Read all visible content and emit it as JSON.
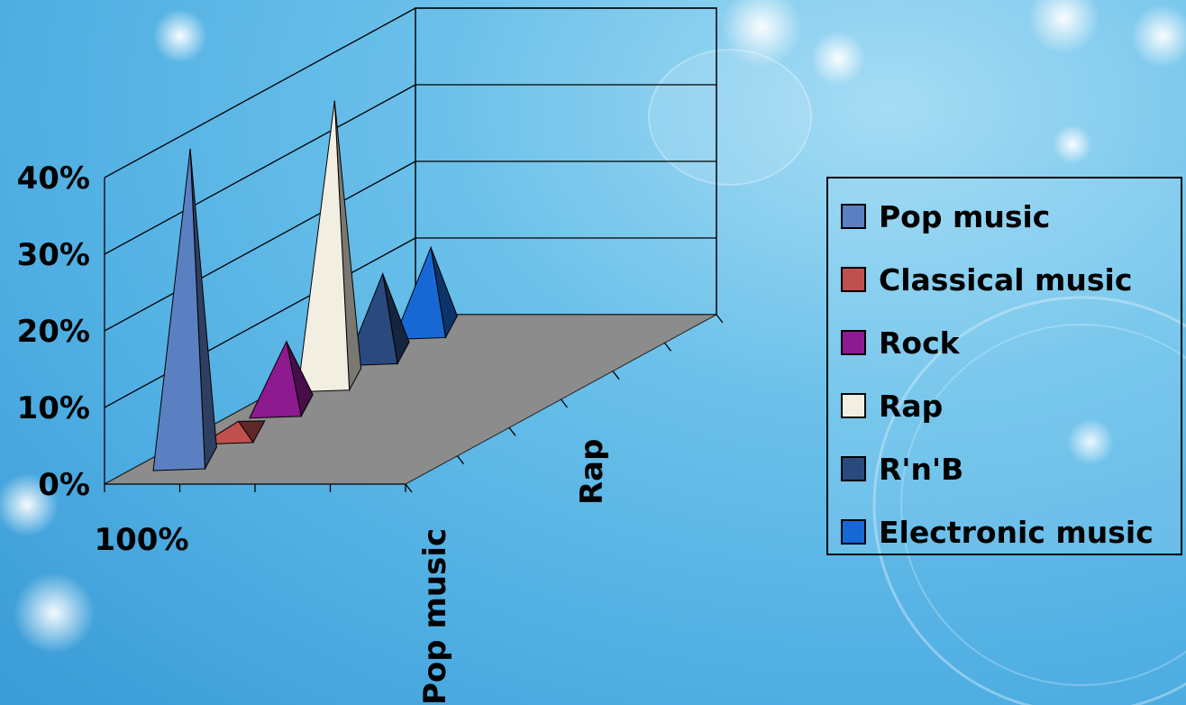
{
  "chart_data": {
    "type": "bar",
    "style": "3d-pyramid",
    "categories": [
      "100%"
    ],
    "series": [
      {
        "name": "Pop music",
        "values": [
          42
        ],
        "color": "#5b80c2"
      },
      {
        "name": "Classical music",
        "values": [
          3
        ],
        "color": "#c0504d"
      },
      {
        "name": "Rock",
        "values": [
          10
        ],
        "color": "#8e1a8f"
      },
      {
        "name": "Rap",
        "values": [
          38
        ],
        "color": "#f2efe2"
      },
      {
        "name": "R'n'B",
        "values": [
          12
        ],
        "color": "#2a4a7f"
      },
      {
        "name": "Electronic music",
        "values": [
          12
        ],
        "color": "#1768d4"
      }
    ],
    "y_ticks": [
      "0%",
      "10%",
      "20%",
      "30%",
      "40%"
    ],
    "ylim": [
      0,
      40
    ],
    "depth_labels": [
      "Pop music",
      "Rap"
    ],
    "legend_position": "right",
    "floor_color": "#8c8c8c",
    "grid": true
  },
  "legend": {
    "items": [
      {
        "label": "Pop music",
        "color": "#5b80c2"
      },
      {
        "label": "Classical music",
        "color": "#c0504d"
      },
      {
        "label": "Rock",
        "color": "#8e1a8f"
      },
      {
        "label": "Rap",
        "color": "#f2efe2"
      },
      {
        "label": "R'n'B",
        "color": "#2a4a7f"
      },
      {
        "label": "Electronic music",
        "color": "#1768d4"
      }
    ]
  }
}
